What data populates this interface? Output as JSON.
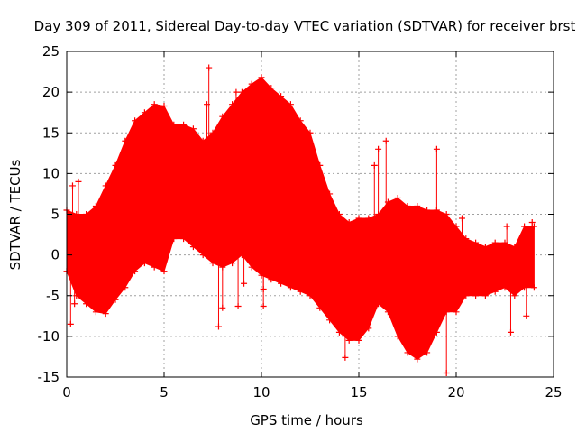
{
  "chart_data": {
    "type": "scatter",
    "title": "Day 309 of 2011, Sidereal Day-to-day VTEC variation (SDTVAR) for receiver brst",
    "xlabel": "GPS time / hours",
    "ylabel": "SDTVAR / TECUs",
    "xlim": [
      0,
      25
    ],
    "ylim": [
      -15,
      25
    ],
    "xticks": [
      0,
      5,
      10,
      15,
      20,
      25
    ],
    "yticks": [
      -15,
      -10,
      -5,
      0,
      5,
      10,
      15,
      20,
      25
    ],
    "grid": true,
    "marker": "+",
    "color": "#ff0000",
    "series": [
      {
        "name": "SDTVAR",
        "envelope": {
          "x": [
            0,
            0.5,
            1,
            1.5,
            2,
            2.5,
            3,
            3.5,
            4,
            4.5,
            5,
            5.5,
            6,
            6.5,
            7,
            7.5,
            8,
            8.5,
            9,
            9.5,
            10,
            10.5,
            11,
            11.5,
            12,
            12.5,
            13,
            13.5,
            14,
            14.5,
            15,
            15.5,
            16,
            16.5,
            17,
            17.5,
            18,
            18.5,
            19,
            19.5,
            20,
            20.5,
            21,
            21.5,
            22,
            22.5,
            23,
            23.5,
            24
          ],
          "upper": [
            5.5,
            5,
            5,
            6,
            8.5,
            11,
            14,
            16.5,
            17.5,
            18.5,
            18.3,
            16,
            16,
            15.5,
            14,
            15,
            17,
            18.5,
            20,
            21,
            21.8,
            20.5,
            19.5,
            18.5,
            16.5,
            15,
            11,
            7.5,
            5,
            4,
            4.5,
            4.5,
            5,
            6.5,
            7,
            6,
            6,
            5.5,
            5.5,
            5,
            3.5,
            2,
            1.5,
            1,
            1.5,
            1.5,
            1,
            3.5,
            3.5
          ],
          "lower": [
            -2,
            -5,
            -6,
            -7,
            -7.2,
            -5.5,
            -4,
            -2,
            -1,
            -1.5,
            -2,
            2,
            2,
            1,
            0,
            -1,
            -1.5,
            -1,
            0,
            -1.5,
            -2.5,
            -3,
            -3.5,
            -4,
            -4.5,
            -5,
            -6.5,
            -8,
            -9.5,
            -10.5,
            -10.5,
            -9,
            -6,
            -7,
            -10,
            -12,
            -12.8,
            -12,
            -9.5,
            -7,
            -7,
            -5,
            -5,
            -5,
            -4.5,
            -4,
            -5,
            -4,
            -4
          ]
        },
        "outliers": [
          {
            "x": 0.2,
            "y": -8.5
          },
          {
            "x": 0.3,
            "y": 8.5
          },
          {
            "x": 0.6,
            "y": 9
          },
          {
            "x": 0.4,
            "y": -6
          },
          {
            "x": 7.3,
            "y": 23
          },
          {
            "x": 7.2,
            "y": 18.5
          },
          {
            "x": 7.8,
            "y": -8.8
          },
          {
            "x": 8.0,
            "y": -6.5
          },
          {
            "x": 8.7,
            "y": 20
          },
          {
            "x": 8.6,
            "y": 15
          },
          {
            "x": 8.8,
            "y": -6.3
          },
          {
            "x": 9.1,
            "y": -3.5
          },
          {
            "x": 10.0,
            "y": -0.8
          },
          {
            "x": 10.1,
            "y": -4.2
          },
          {
            "x": 10.1,
            "y": -6.3
          },
          {
            "x": 14.3,
            "y": -12.6
          },
          {
            "x": 15.8,
            "y": 11
          },
          {
            "x": 16.0,
            "y": 13
          },
          {
            "x": 16.4,
            "y": 14
          },
          {
            "x": 19.0,
            "y": 13
          },
          {
            "x": 19.5,
            "y": -14.5
          },
          {
            "x": 20.3,
            "y": 4.5
          },
          {
            "x": 22.6,
            "y": 3.5
          },
          {
            "x": 22.8,
            "y": -9.5
          },
          {
            "x": 23.6,
            "y": -7.5
          },
          {
            "x": 23.9,
            "y": 4
          }
        ]
      }
    ]
  }
}
